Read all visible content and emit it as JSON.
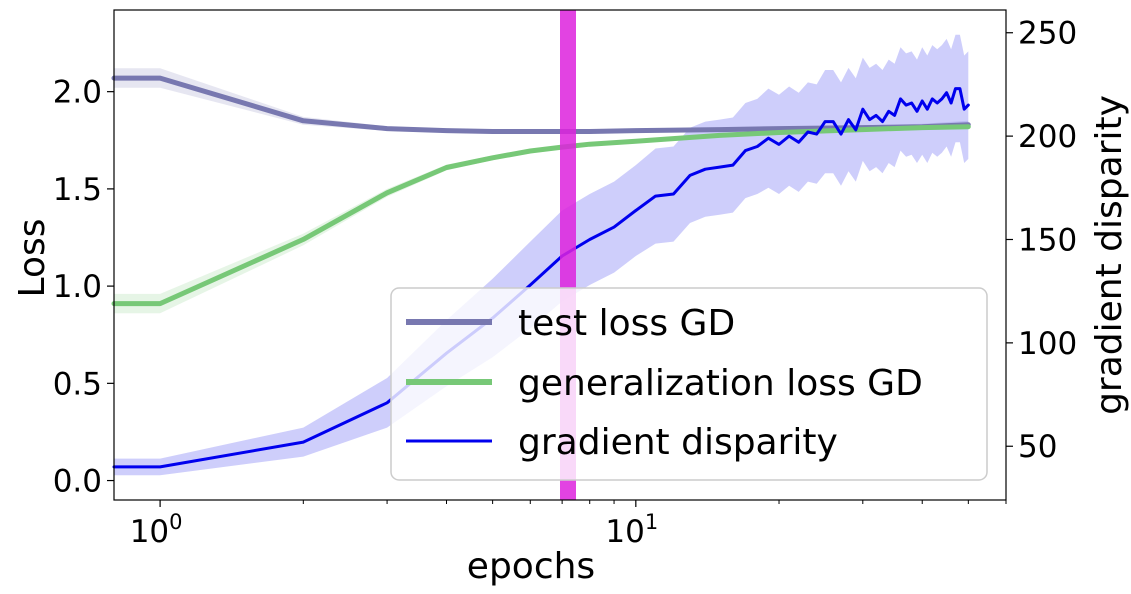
{
  "chart_data": {
    "type": "line",
    "xlabel": "epochs",
    "ylabel_left": "Loss",
    "ylabel_right": "gradient disparity",
    "x_scale": "log",
    "xlim": [
      0.8,
      60
    ],
    "ylim_left": [
      -0.1,
      2.42
    ],
    "ylim_right": [
      24,
      261
    ],
    "x_ticks": [
      {
        "value": 1,
        "base": "10",
        "exp": "0"
      },
      {
        "value": 10,
        "base": "10",
        "exp": "1"
      }
    ],
    "y_ticks_left": [
      {
        "value": 0.0,
        "label": "0.0"
      },
      {
        "value": 0.5,
        "label": "0.5"
      },
      {
        "value": 1.0,
        "label": "1.0"
      },
      {
        "value": 1.5,
        "label": "1.5"
      },
      {
        "value": 2.0,
        "label": "2.0"
      }
    ],
    "y_ticks_right": [
      {
        "value": 50,
        "label": "50"
      },
      {
        "value": 100,
        "label": "100"
      },
      {
        "value": 150,
        "label": "150"
      },
      {
        "value": 200,
        "label": "200"
      },
      {
        "value": 250,
        "label": "250"
      }
    ],
    "vertical_marker": {
      "x": 7.2,
      "color": "#dd22dd"
    },
    "legend_position": "lower-right",
    "series": [
      {
        "name": "test loss GD",
        "axis": "left",
        "color": "#7878b0",
        "band_color": "#9a9ac8",
        "x": [
          0.8,
          1,
          2,
          3,
          4,
          5,
          6,
          7,
          8,
          10,
          15,
          20,
          30,
          40,
          50
        ],
        "y": [
          2.07,
          2.07,
          1.85,
          1.81,
          1.8,
          1.795,
          1.795,
          1.795,
          1.795,
          1.8,
          1.805,
          1.81,
          1.815,
          1.82,
          1.83
        ],
        "band": [
          0.05,
          0.05,
          0.02,
          0.012,
          0.01,
          0.01,
          0.01,
          0.01,
          0.01,
          0.01,
          0.01,
          0.01,
          0.012,
          0.015,
          0.02
        ]
      },
      {
        "name": "generalization loss GD",
        "axis": "left",
        "color": "#77c877",
        "band_color": "#9cd89c",
        "x": [
          0.8,
          1,
          2,
          3,
          4,
          5,
          6,
          7,
          8,
          10,
          15,
          20,
          30,
          40,
          50
        ],
        "y": [
          0.91,
          0.91,
          1.24,
          1.48,
          1.61,
          1.66,
          1.695,
          1.715,
          1.73,
          1.745,
          1.775,
          1.79,
          1.805,
          1.815,
          1.82
        ],
        "band": [
          0.05,
          0.05,
          0.03,
          0.02,
          0.015,
          0.012,
          0.01,
          0.01,
          0.01,
          0.01,
          0.01,
          0.01,
          0.01,
          0.012,
          0.012
        ]
      },
      {
        "name": "gradient disparity",
        "axis": "right",
        "color": "#0000ee",
        "band_color": "#2222ee",
        "x": [
          0.8,
          1,
          2,
          3,
          4,
          5,
          6,
          7,
          8,
          9,
          10,
          11,
          12,
          13,
          14,
          15,
          16,
          17,
          18,
          19,
          20,
          21,
          22,
          23,
          24,
          25,
          26,
          27,
          28,
          29,
          30,
          31,
          32,
          33,
          34,
          35,
          36,
          37,
          38,
          39,
          40,
          41,
          42,
          43,
          44,
          45,
          46,
          47,
          48,
          49,
          50
        ],
        "y": [
          40,
          40,
          52,
          71,
          95,
          112,
          128,
          142,
          150,
          156,
          164,
          171,
          172,
          181,
          184,
          185,
          186,
          193,
          195,
          199,
          196,
          200,
          197,
          202,
          201,
          207,
          207,
          201,
          208,
          203,
          213,
          208,
          210,
          207,
          212,
          210,
          218,
          215,
          216,
          212,
          217,
          213,
          218,
          216,
          218,
          221,
          216,
          223,
          223,
          213,
          215
        ],
        "band": [
          4,
          4,
          7,
          12,
          16,
          19,
          21,
          22,
          22,
          22,
          22,
          23,
          23,
          23,
          23,
          23,
          23,
          23,
          23,
          24,
          24,
          24,
          24,
          24,
          24,
          25,
          25,
          25,
          25,
          25,
          25,
          25,
          25,
          25,
          25,
          25,
          25,
          25,
          25,
          25,
          26,
          26,
          26,
          26,
          26,
          26,
          26,
          26,
          26,
          26,
          26
        ]
      }
    ]
  }
}
